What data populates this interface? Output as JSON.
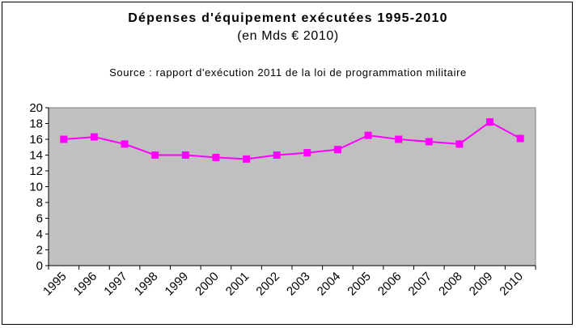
{
  "chart_data": {
    "type": "line",
    "title": "Dépenses d'équipement exécutées 1995-2010",
    "subtitle": "(en Mds € 2010)",
    "annotation": "Source : rapport d'exécution 2011 de la loi de programmation militaire",
    "xlabel": "",
    "ylabel": "",
    "categories": [
      "1995",
      "1996",
      "1997",
      "1998",
      "1999",
      "2000",
      "2001",
      "2002",
      "2003",
      "2004",
      "2005",
      "2006",
      "2007",
      "2008",
      "2009",
      "2010"
    ],
    "series": [
      {
        "name": "Dépenses d'équipement",
        "values": [
          16.0,
          16.3,
          15.4,
          14.0,
          14.0,
          13.7,
          13.5,
          14.0,
          14.3,
          14.7,
          16.5,
          16.0,
          15.7,
          15.4,
          18.2,
          16.1
        ]
      }
    ],
    "yticks": [
      "0",
      "2",
      "4",
      "6",
      "8",
      "10",
      "12",
      "14",
      "16",
      "18",
      "20"
    ],
    "ylim": [
      0,
      20
    ],
    "grid": false,
    "colors": {
      "plot_bg": "#c0c0c0",
      "line": "#ff00ff",
      "marker": "#ff00ff"
    }
  }
}
